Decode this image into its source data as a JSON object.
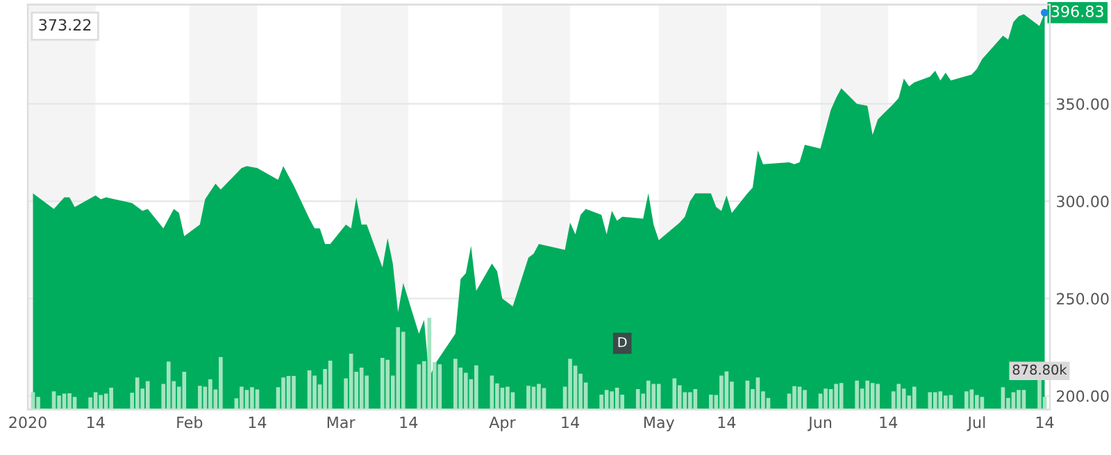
{
  "chart_data": {
    "type": "area",
    "xlim": [
      "2020-01-01",
      "2020-07-15"
    ],
    "xticks": [
      {
        "value": "2020-01-01",
        "label": "2020"
      },
      {
        "value": "2020-01-14",
        "label": "14"
      },
      {
        "value": "2020-02-01",
        "label": "Feb"
      },
      {
        "value": "2020-02-14",
        "label": "14"
      },
      {
        "value": "2020-03-01",
        "label": "Mar"
      },
      {
        "value": "2020-03-14",
        "label": "14"
      },
      {
        "value": "2020-04-01",
        "label": "Apr"
      },
      {
        "value": "2020-04-14",
        "label": "14"
      },
      {
        "value": "2020-05-01",
        "label": "May"
      },
      {
        "value": "2020-05-14",
        "label": "14"
      },
      {
        "value": "2020-06-01",
        "label": "Jun"
      },
      {
        "value": "2020-06-14",
        "label": "14"
      },
      {
        "value": "2020-07-01",
        "label": "Jul"
      },
      {
        "value": "2020-07-14",
        "label": "14"
      }
    ],
    "ylim": [
      193,
      401
    ],
    "yticks": [
      {
        "value": 200,
        "label": "200.00"
      },
      {
        "value": 250,
        "label": "250.00"
      },
      {
        "value": 300,
        "label": "300.00"
      },
      {
        "value": 350,
        "label": "350.00"
      }
    ],
    "y2lim": [
      0,
      11080
    ],
    "grid": "y",
    "legend": false,
    "bands": [
      {
        "axis": "x",
        "from": "2020-01-01",
        "to": "2020-01-14",
        "color": "#f4f4f4"
      },
      {
        "axis": "x",
        "from": "2020-02-01",
        "to": "2020-02-14",
        "color": "#f4f4f4"
      },
      {
        "axis": "x",
        "from": "2020-03-01",
        "to": "2020-03-14",
        "color": "#f4f4f4"
      },
      {
        "axis": "x",
        "from": "2020-04-01",
        "to": "2020-04-14",
        "color": "#f4f4f4"
      },
      {
        "axis": "x",
        "from": "2020-05-01",
        "to": "2020-05-14",
        "color": "#f4f4f4"
      },
      {
        "axis": "x",
        "from": "2020-06-01",
        "to": "2020-06-14",
        "color": "#f4f4f4"
      },
      {
        "axis": "x",
        "from": "2020-07-01",
        "to": "2020-07-14",
        "color": "#f4f4f4"
      }
    ],
    "annotations": [
      "373.22",
      {
        "text": "396.83",
        "x": "2020-07-14",
        "y": 396.83
      },
      {
        "text": "D",
        "x": "2020-04-24",
        "y": 227
      }
    ],
    "series": [
      {
        "color": "#00ad5d",
        "x": [
          "2020-01-02",
          "2020-01-06",
          "2020-01-08",
          "2020-01-09",
          "2020-01-10",
          "2020-01-14",
          "2020-01-15",
          "2020-01-16",
          "2020-01-21",
          "2020-01-23",
          "2020-01-24",
          "2020-01-27",
          "2020-01-29",
          "2020-01-30",
          "2020-01-31",
          "2020-02-03",
          "2020-02-04",
          "2020-02-06",
          "2020-02-07",
          "2020-02-11",
          "2020-02-12",
          "2020-02-14",
          "2020-02-18",
          "2020-02-19",
          "2020-02-21",
          "2020-02-24",
          "2020-02-25",
          "2020-02-26",
          "2020-02-27",
          "2020-02-28",
          "2020-03-02",
          "2020-03-03",
          "2020-03-04",
          "2020-03-05",
          "2020-03-06",
          "2020-03-09",
          "2020-03-10",
          "2020-03-11",
          "2020-03-12",
          "2020-03-13",
          "2020-03-16",
          "2020-03-17",
          "2020-03-18",
          "2020-03-19",
          "2020-03-23",
          "2020-03-24",
          "2020-03-25",
          "2020-03-26",
          "2020-03-27",
          "2020-03-30",
          "2020-03-31",
          "2020-04-01",
          "2020-04-02",
          "2020-04-03",
          "2020-04-06",
          "2020-04-07",
          "2020-04-08",
          "2020-04-13",
          "2020-04-14",
          "2020-04-15",
          "2020-04-16",
          "2020-04-17",
          "2020-04-20",
          "2020-04-21",
          "2020-04-22",
          "2020-04-23",
          "2020-04-24",
          "2020-04-28",
          "2020-04-29",
          "2020-04-30",
          "2020-05-01",
          "2020-05-05",
          "2020-05-06",
          "2020-05-07",
          "2020-05-08",
          "2020-05-11",
          "2020-05-12",
          "2020-05-13",
          "2020-05-14",
          "2020-05-15",
          "2020-05-18",
          "2020-05-19",
          "2020-05-20",
          "2020-05-21",
          "2020-05-26",
          "2020-05-27",
          "2020-05-28",
          "2020-05-29",
          "2020-06-01",
          "2020-06-02",
          "2020-06-03",
          "2020-06-04",
          "2020-06-05",
          "2020-06-08",
          "2020-06-10",
          "2020-06-11",
          "2020-06-12",
          "2020-06-15",
          "2020-06-16",
          "2020-06-17",
          "2020-06-18",
          "2020-06-19",
          "2020-06-22",
          "2020-06-23",
          "2020-06-24",
          "2020-06-25",
          "2020-06-26",
          "2020-06-30",
          "2020-07-01",
          "2020-07-02",
          "2020-07-06",
          "2020-07-07",
          "2020-07-08",
          "2020-07-09",
          "2020-07-10",
          "2020-07-13",
          "2020-07-14"
        ],
        "values": [
          304,
          296,
          302,
          302,
          297,
          303,
          301,
          302,
          299,
          295,
          296,
          286,
          296,
          294,
          282,
          288,
          301,
          309,
          306,
          317,
          318,
          317,
          311,
          318,
          308,
          291,
          286,
          286,
          278,
          278,
          288,
          286,
          302,
          288,
          288,
          266,
          281,
          268,
          243,
          258,
          232,
          239,
          209,
          216,
          232,
          260,
          263,
          277,
          254,
          268,
          264,
          250,
          248,
          246,
          271,
          273,
          278,
          275,
          289,
          283,
          293,
          296,
          293,
          283,
          295,
          290,
          292,
          291,
          304,
          288,
          280,
          289,
          292,
          300,
          304,
          304,
          297,
          295,
          303,
          294,
          304,
          307,
          326,
          319,
          320,
          319,
          320,
          329,
          327,
          337,
          347,
          353,
          358,
          350,
          349,
          334,
          342,
          350,
          353,
          363,
          359,
          361,
          364,
          367,
          362,
          366,
          362,
          365,
          368,
          373,
          385,
          383,
          392,
          395,
          396,
          390,
          396.83
        ]
      },
      {
        "type": "bar",
        "axis": "y2",
        "color": "#a3e4c0",
        "x": [
          "2020-01-02",
          "2020-01-03",
          "2020-01-06",
          "2020-01-07",
          "2020-01-08",
          "2020-01-09",
          "2020-01-10",
          "2020-01-13",
          "2020-01-14",
          "2020-01-15",
          "2020-01-16",
          "2020-01-17",
          "2020-01-21",
          "2020-01-22",
          "2020-01-23",
          "2020-01-24",
          "2020-01-27",
          "2020-01-28",
          "2020-01-29",
          "2020-01-30",
          "2020-01-31",
          "2020-02-03",
          "2020-02-04",
          "2020-02-05",
          "2020-02-06",
          "2020-02-07",
          "2020-02-10",
          "2020-02-11",
          "2020-02-12",
          "2020-02-13",
          "2020-02-14",
          "2020-02-18",
          "2020-02-19",
          "2020-02-20",
          "2020-02-21",
          "2020-02-24",
          "2020-02-25",
          "2020-02-26",
          "2020-02-27",
          "2020-02-28",
          "2020-03-02",
          "2020-03-03",
          "2020-03-04",
          "2020-03-05",
          "2020-03-06",
          "2020-03-09",
          "2020-03-10",
          "2020-03-11",
          "2020-03-12",
          "2020-03-13",
          "2020-03-16",
          "2020-03-17",
          "2020-03-18",
          "2020-03-19",
          "2020-03-20",
          "2020-03-23",
          "2020-03-24",
          "2020-03-25",
          "2020-03-26",
          "2020-03-27",
          "2020-03-30",
          "2020-03-31",
          "2020-04-01",
          "2020-04-02",
          "2020-04-03",
          "2020-04-06",
          "2020-04-07",
          "2020-04-08",
          "2020-04-09",
          "2020-04-13",
          "2020-04-14",
          "2020-04-15",
          "2020-04-16",
          "2020-04-17",
          "2020-04-20",
          "2020-04-21",
          "2020-04-22",
          "2020-04-23",
          "2020-04-24",
          "2020-04-27",
          "2020-04-28",
          "2020-04-29",
          "2020-04-30",
          "2020-05-01",
          "2020-05-04",
          "2020-05-05",
          "2020-05-06",
          "2020-05-07",
          "2020-05-08",
          "2020-05-11",
          "2020-05-12",
          "2020-05-13",
          "2020-05-14",
          "2020-05-15",
          "2020-05-18",
          "2020-05-19",
          "2020-05-20",
          "2020-05-21",
          "2020-05-22",
          "2020-05-26",
          "2020-05-27",
          "2020-05-28",
          "2020-05-29",
          "2020-06-01",
          "2020-06-02",
          "2020-06-03",
          "2020-06-04",
          "2020-06-05",
          "2020-06-08",
          "2020-06-09",
          "2020-06-10",
          "2020-06-11",
          "2020-06-12",
          "2020-06-15",
          "2020-06-16",
          "2020-06-17",
          "2020-06-18",
          "2020-06-19",
          "2020-06-22",
          "2020-06-23",
          "2020-06-24",
          "2020-06-25",
          "2020-06-26",
          "2020-06-29",
          "2020-06-30",
          "2020-07-01",
          "2020-07-02",
          "2020-07-06",
          "2020-07-07",
          "2020-07-08",
          "2020-07-09",
          "2020-07-10",
          "2020-07-13",
          "2020-07-14"
        ],
        "values": [
          471,
          344,
          496,
          382,
          433,
          446,
          344,
          331,
          471,
          395,
          433,
          598,
          458,
          878,
          573,
          777,
          700,
          1311,
          777,
          624,
          1031,
          649,
          624,
          827,
          547,
          1438,
          306,
          624,
          535,
          611,
          547,
          611,
          878,
          917,
          917,
          1069,
          929,
          687,
          1107,
          1337,
          853,
          1528,
          1031,
          1146,
          929,
          1413,
          1362,
          929,
          2253,
          2126,
          1235,
          1324,
          2508,
          1298,
          1235,
          1388,
          1146,
          1006,
          827,
          1209,
          929,
          713,
          598,
          624,
          471,
          649,
          624,
          700,
          586,
          624,
          1388,
          1197,
          980,
          738,
          407,
          535,
          496,
          598,
          407,
          560,
          433,
          789,
          700,
          700,
          853,
          662,
          471,
          471,
          560,
          407,
          395,
          929,
          1044,
          764,
          789,
          560,
          878,
          496,
          318,
          433,
          637,
          624,
          535,
          433,
          573,
          560,
          700,
          726,
          789,
          573,
          789,
          726,
          700,
          496,
          700,
          573,
          382,
          624,
          471,
          471,
          496,
          382,
          395,
          496,
          547,
          395,
          344,
          611,
          318,
          471,
          535,
          535,
          878.8,
          344
        ],
        "value_labels": [
          null,
          null,
          null,
          null,
          null,
          null,
          null,
          null,
          null,
          null,
          null,
          null,
          null,
          null,
          null,
          null,
          null,
          null,
          null,
          null,
          null,
          null,
          null,
          null,
          null,
          null,
          null,
          null,
          null,
          null,
          null,
          null,
          null,
          null,
          null,
          null,
          null,
          null,
          null,
          null,
          null,
          null,
          null,
          null,
          null,
          null,
          null,
          null,
          null,
          null,
          null,
          null,
          null,
          null,
          null,
          null,
          null,
          null,
          null,
          null,
          null,
          null,
          null,
          null,
          null,
          null,
          null,
          null,
          null,
          null,
          null,
          null,
          null,
          null,
          null,
          null,
          null,
          null,
          null,
          null,
          null,
          null,
          null,
          null,
          null,
          null,
          null,
          null,
          null,
          null,
          null,
          null,
          null,
          null,
          null,
          null,
          null,
          null,
          null,
          null,
          null,
          null,
          null,
          null,
          null,
          null,
          null,
          null,
          null,
          null,
          null,
          null,
          null,
          null,
          null,
          null,
          null,
          null,
          null,
          null,
          null,
          null,
          null,
          null,
          null,
          null,
          null,
          null,
          null,
          null,
          null,
          null,
          "878.80k",
          null
        ]
      }
    ]
  }
}
